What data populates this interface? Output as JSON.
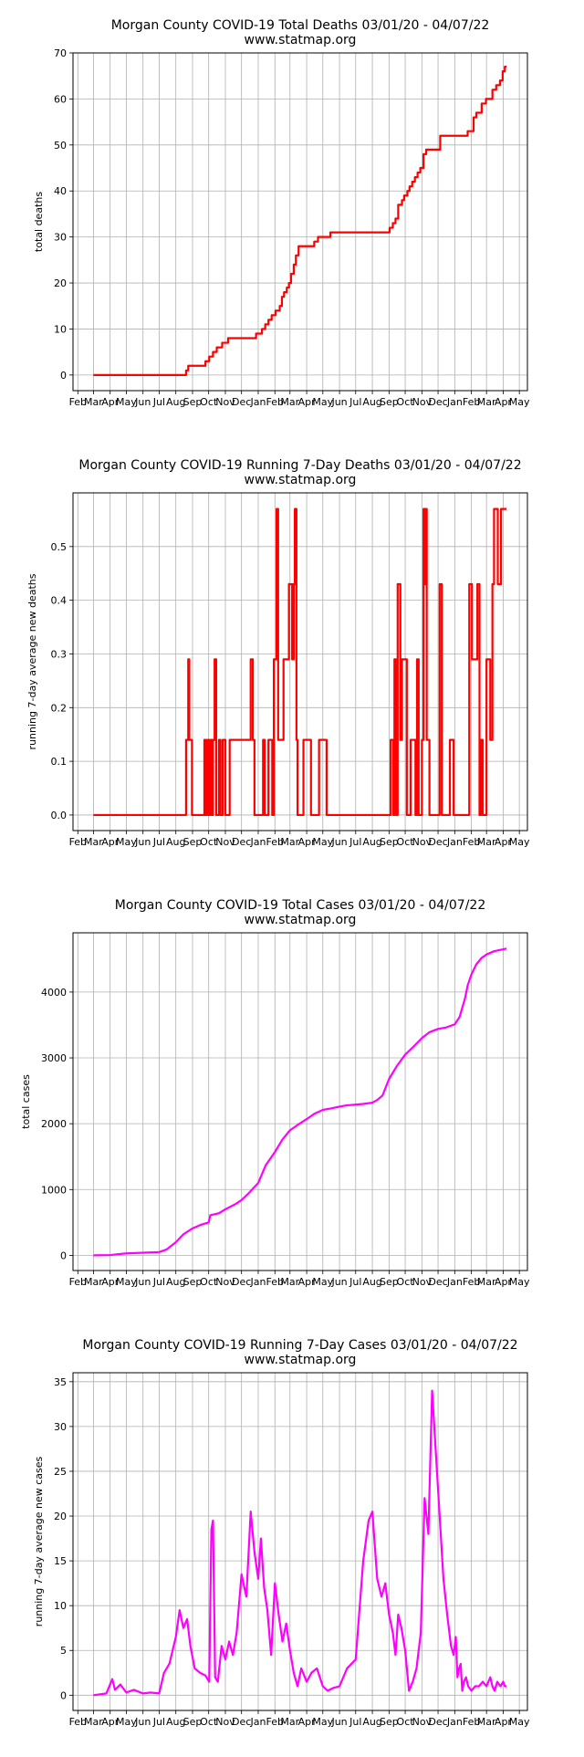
{
  "chart_data": [
    {
      "type": "line",
      "title": "Morgan County COVID-19 Total Deaths 03/01/20 - 04/07/22",
      "subtitle": "www.statmap.org",
      "xlabel": "",
      "ylabel": "total deaths",
      "color": "#ff0000",
      "grid": true,
      "legend": "none",
      "step": true,
      "ylim": [
        -3.4,
        70
      ],
      "yticks": [
        0,
        10,
        20,
        30,
        40,
        50,
        60,
        70
      ],
      "ytick_labels": [
        "0",
        "10",
        "20",
        "30",
        "40",
        "50",
        "60",
        "70"
      ],
      "xlim": [
        "2020-01-23",
        "2022-05-16"
      ],
      "xticks": [
        "2020-02-01",
        "2020-03-01",
        "2020-04-01",
        "2020-05-01",
        "2020-06-01",
        "2020-07-01",
        "2020-08-01",
        "2020-09-01",
        "2020-10-01",
        "2020-11-01",
        "2020-12-01",
        "2021-01-01",
        "2021-02-01",
        "2021-03-01",
        "2021-04-01",
        "2021-05-01",
        "2021-06-01",
        "2021-07-01",
        "2021-08-01",
        "2021-09-01",
        "2021-10-01",
        "2021-11-01",
        "2021-12-01",
        "2022-01-01",
        "2022-02-01",
        "2022-03-01",
        "2022-04-01",
        "2022-05-01"
      ],
      "xtick_labels": [
        "Feb",
        "Mar",
        "Apr",
        "May",
        "Jun",
        "Jul",
        "Aug",
        "Sep",
        "Oct",
        "Nov",
        "Dec",
        "Jan",
        "Feb",
        "Mar",
        "Apr",
        "May",
        "Jun",
        "Jul",
        "Aug",
        "Sep",
        "Oct",
        "Nov",
        "Dec",
        "Jan",
        "Feb",
        "Mar",
        "Apr",
        "May"
      ],
      "x": [
        "2020-03-01",
        "2020-08-20",
        "2020-08-24",
        "2020-08-28",
        "2020-09-25",
        "2020-10-02",
        "2020-10-09",
        "2020-10-16",
        "2020-10-26",
        "2020-11-06",
        "2020-12-01",
        "2020-12-28",
        "2021-01-08",
        "2021-01-14",
        "2021-01-20",
        "2021-01-26",
        "2021-02-02",
        "2021-02-10",
        "2021-02-14",
        "2021-02-18",
        "2021-02-23",
        "2021-02-27",
        "2021-03-03",
        "2021-03-08",
        "2021-03-12",
        "2021-03-17",
        "2021-03-25",
        "2021-04-15",
        "2021-04-22",
        "2021-05-15",
        "2021-08-30",
        "2021-09-02",
        "2021-09-08",
        "2021-09-13",
        "2021-09-18",
        "2021-09-25",
        "2021-09-29",
        "2021-10-05",
        "2021-10-09",
        "2021-10-14",
        "2021-10-19",
        "2021-10-24",
        "2021-10-29",
        "2021-11-04",
        "2021-11-09",
        "2021-11-14",
        "2021-12-05",
        "2022-01-12",
        "2022-01-25",
        "2022-01-29",
        "2022-02-05",
        "2022-02-10",
        "2022-02-20",
        "2022-02-28",
        "2022-03-06",
        "2022-03-12",
        "2022-03-19",
        "2022-03-26",
        "2022-03-31",
        "2022-04-04",
        "2022-04-07"
      ],
      "y": [
        0,
        1,
        2,
        2,
        3,
        4,
        5,
        6,
        7,
        8,
        8,
        9,
        10,
        11,
        12,
        13,
        14,
        15,
        17,
        18,
        19,
        20,
        22,
        24,
        26,
        28,
        28,
        29,
        30,
        31,
        31,
        32,
        33,
        34,
        37,
        38,
        39,
        40,
        41,
        42,
        43,
        44,
        45,
        48,
        49,
        49,
        52,
        52,
        53,
        53,
        56,
        57,
        59,
        60,
        60,
        62,
        63,
        64,
        66,
        67,
        67
      ]
    },
    {
      "type": "line",
      "title": "Morgan County COVID-19 Running 7-Day Deaths 03/01/20 - 04/07/22",
      "subtitle": "www.statmap.org",
      "xlabel": "",
      "ylabel": "running 7-day average new deaths",
      "color": "#ff0000",
      "grid": true,
      "legend": "none",
      "step": true,
      "ylim": [
        -0.029,
        0.6
      ],
      "yticks": [
        0,
        0.1,
        0.2,
        0.3,
        0.4,
        0.5
      ],
      "ytick_labels": [
        "0.0",
        "0.1",
        "0.2",
        "0.3",
        "0.4",
        "0.5"
      ],
      "xlim": [
        "2020-01-23",
        "2022-05-16"
      ],
      "xticks": [
        "2020-02-01",
        "2020-03-01",
        "2020-04-01",
        "2020-05-01",
        "2020-06-01",
        "2020-07-01",
        "2020-08-01",
        "2020-09-01",
        "2020-10-01",
        "2020-11-01",
        "2020-12-01",
        "2021-01-01",
        "2021-02-01",
        "2021-03-01",
        "2021-04-01",
        "2021-05-01",
        "2021-06-01",
        "2021-07-01",
        "2021-08-01",
        "2021-09-01",
        "2021-10-01",
        "2021-11-01",
        "2021-12-01",
        "2022-01-01",
        "2022-02-01",
        "2022-03-01",
        "2022-04-01",
        "2022-05-01"
      ],
      "xtick_labels": [
        "Feb",
        "Mar",
        "Apr",
        "May",
        "Jun",
        "Jul",
        "Aug",
        "Sep",
        "Oct",
        "Nov",
        "Dec",
        "Jan",
        "Feb",
        "Mar",
        "Apr",
        "May",
        "Jun",
        "Jul",
        "Aug",
        "Sep",
        "Oct",
        "Nov",
        "Dec",
        "Jan",
        "Feb",
        "Mar",
        "Apr",
        "May"
      ],
      "x": [
        "2020-03-01",
        "2020-08-20",
        "2020-08-24",
        "2020-08-26",
        "2020-08-31",
        "2020-09-08",
        "2020-09-23",
        "2020-09-25",
        "2020-09-28",
        "2020-10-01",
        "2020-10-04",
        "2020-10-07",
        "2020-10-09",
        "2020-10-12",
        "2020-10-15",
        "2020-10-20",
        "2020-10-23",
        "2020-10-27",
        "2020-11-01",
        "2020-11-04",
        "2020-11-09",
        "2020-12-18",
        "2020-12-22",
        "2020-12-25",
        "2020-12-29",
        "2021-01-02",
        "2021-01-10",
        "2021-01-13",
        "2021-01-20",
        "2021-01-27",
        "2021-01-30",
        "2021-02-04",
        "2021-02-07",
        "2021-02-09",
        "2021-02-11",
        "2021-02-17",
        "2021-02-27",
        "2021-03-05",
        "2021-03-08",
        "2021-03-10",
        "2021-03-13",
        "2021-03-15",
        "2021-03-19",
        "2021-03-26",
        "2021-04-09",
        "2021-04-14",
        "2021-04-24",
        "2021-05-08",
        "2021-05-13",
        "2021-05-16",
        "2021-06-16",
        "2021-09-04",
        "2021-09-09",
        "2021-09-11",
        "2021-09-14",
        "2021-09-17",
        "2021-09-22",
        "2021-09-25",
        "2021-10-04",
        "2021-10-11",
        "2021-10-20",
        "2021-10-23",
        "2021-10-26",
        "2021-11-01",
        "2021-11-04",
        "2021-11-06",
        "2021-11-08",
        "2021-11-10",
        "2021-11-15",
        "2021-11-19",
        "2021-12-04",
        "2021-12-08",
        "2021-12-14",
        "2021-12-23",
        "2021-12-30",
        "2022-01-28",
        "2022-02-02",
        "2022-02-12",
        "2022-02-16",
        "2022-02-19",
        "2022-02-22",
        "2022-03-01",
        "2022-03-08",
        "2022-03-12",
        "2022-03-15",
        "2022-03-18",
        "2022-03-22",
        "2022-03-28",
        "2022-04-07"
      ],
      "y": [
        0,
        0.14,
        0.29,
        0.14,
        0,
        0,
        0.14,
        0,
        0.14,
        0,
        0.14,
        0,
        0.14,
        0.29,
        0,
        0.14,
        0,
        0.14,
        0,
        0,
        0.14,
        0.29,
        0.14,
        0,
        0,
        0,
        0.14,
        0,
        0.14,
        0,
        0.29,
        0.57,
        0.14,
        0.14,
        0.14,
        0.29,
        0.43,
        0.29,
        0.43,
        0.57,
        0.14,
        0,
        0,
        0.14,
        0,
        0,
        0.14,
        0,
        0,
        0,
        0,
        0.14,
        0,
        0.29,
        0,
        0.43,
        0.14,
        0.29,
        0,
        0.14,
        0,
        0.29,
        0,
        0.14,
        0.57,
        0.43,
        0.57,
        0.14,
        0,
        0,
        0.43,
        0,
        0,
        0.14,
        0,
        0.43,
        0.29,
        0.43,
        0,
        0.14,
        0,
        0.29,
        0.14,
        0.43,
        0.57,
        0.57,
        0.43,
        0.57,
        0.57
      ],
      "note_unused": ""
    },
    {
      "type": "line",
      "title": "Morgan County COVID-19 Total Cases 03/01/20 - 04/07/22",
      "subtitle": "www.statmap.org",
      "xlabel": "",
      "ylabel": "total cases",
      "color": "#ff00ff",
      "grid": true,
      "legend": "none",
      "step": false,
      "ylim": [
        -230,
        4900
      ],
      "yticks": [
        0,
        1000,
        2000,
        3000,
        4000
      ],
      "ytick_labels": [
        "0",
        "1000",
        "2000",
        "3000",
        "4000"
      ],
      "xlim": [
        "2020-01-23",
        "2022-05-16"
      ],
      "xticks": [
        "2020-02-01",
        "2020-03-01",
        "2020-04-01",
        "2020-05-01",
        "2020-06-01",
        "2020-07-01",
        "2020-08-01",
        "2020-09-01",
        "2020-10-01",
        "2020-11-01",
        "2020-12-01",
        "2021-01-01",
        "2021-02-01",
        "2021-03-01",
        "2021-04-01",
        "2021-05-01",
        "2021-06-01",
        "2021-07-01",
        "2021-08-01",
        "2021-09-01",
        "2021-10-01",
        "2021-11-01",
        "2021-12-01",
        "2022-01-01",
        "2022-02-01",
        "2022-03-01",
        "2022-04-01",
        "2022-05-01"
      ],
      "xtick_labels": [
        "Feb",
        "Mar",
        "Apr",
        "May",
        "Jun",
        "Jul",
        "Aug",
        "Sep",
        "Oct",
        "Nov",
        "Dec",
        "Jan",
        "Feb",
        "Mar",
        "Apr",
        "May",
        "Jun",
        "Jul",
        "Aug",
        "Sep",
        "Oct",
        "Nov",
        "Dec",
        "Jan",
        "Feb",
        "Mar",
        "Apr",
        "May"
      ],
      "x": [
        "2020-03-01",
        "2020-04-01",
        "2020-05-01",
        "2020-06-01",
        "2020-07-01",
        "2020-07-15",
        "2020-08-01",
        "2020-08-15",
        "2020-09-01",
        "2020-09-15",
        "2020-10-01",
        "2020-10-04",
        "2020-10-20",
        "2020-11-01",
        "2020-11-20",
        "2020-12-01",
        "2020-12-15",
        "2021-01-01",
        "2021-01-15",
        "2021-02-01",
        "2021-02-15",
        "2021-03-01",
        "2021-03-15",
        "2021-04-01",
        "2021-04-15",
        "2021-05-01",
        "2021-05-15",
        "2021-06-01",
        "2021-06-15",
        "2021-07-01",
        "2021-07-15",
        "2021-08-01",
        "2021-08-10",
        "2021-08-20",
        "2021-09-01",
        "2021-09-15",
        "2021-10-01",
        "2021-10-15",
        "2021-11-01",
        "2021-11-15",
        "2021-12-01",
        "2021-12-15",
        "2022-01-01",
        "2022-01-10",
        "2022-01-15",
        "2022-01-20",
        "2022-01-25",
        "2022-02-01",
        "2022-02-10",
        "2022-02-20",
        "2022-03-01",
        "2022-03-15",
        "2022-04-01",
        "2022-04-07"
      ],
      "y": [
        0,
        5,
        30,
        40,
        50,
        90,
        200,
        320,
        410,
        460,
        500,
        610,
        640,
        700,
        780,
        840,
        950,
        1100,
        1370,
        1570,
        1760,
        1900,
        1980,
        2070,
        2150,
        2210,
        2230,
        2260,
        2280,
        2290,
        2300,
        2320,
        2360,
        2430,
        2680,
        2870,
        3050,
        3160,
        3300,
        3390,
        3440,
        3460,
        3510,
        3620,
        3760,
        3900,
        4100,
        4270,
        4420,
        4520,
        4570,
        4620,
        4650,
        4660
      ]
    },
    {
      "type": "line",
      "title": "Morgan County COVID-19 Running 7-Day Cases 03/01/20 - 04/07/22",
      "subtitle": "www.statmap.org",
      "xlabel": "",
      "ylabel": "running 7-day average new cases",
      "color": "#ff00ff",
      "grid": true,
      "legend": "none",
      "step": false,
      "ylim": [
        -1.7,
        36
      ],
      "yticks": [
        0,
        5,
        10,
        15,
        20,
        25,
        30,
        35
      ],
      "ytick_labels": [
        "0",
        "5",
        "10",
        "15",
        "20",
        "25",
        "30",
        "35"
      ],
      "xlim": [
        "2020-01-23",
        "2022-05-16"
      ],
      "xticks": [
        "2020-02-01",
        "2020-03-01",
        "2020-04-01",
        "2020-05-01",
        "2020-06-01",
        "2020-07-01",
        "2020-08-01",
        "2020-09-01",
        "2020-10-01",
        "2020-11-01",
        "2020-12-01",
        "2021-01-01",
        "2021-02-01",
        "2021-03-01",
        "2021-04-01",
        "2021-05-01",
        "2021-06-01",
        "2021-07-01",
        "2021-08-01",
        "2021-09-01",
        "2021-10-01",
        "2021-11-01",
        "2021-12-01",
        "2022-01-01",
        "2022-02-01",
        "2022-03-01",
        "2022-04-01",
        "2022-05-01"
      ],
      "xtick_labels": [
        "Feb",
        "Mar",
        "Apr",
        "May",
        "Jun",
        "Jul",
        "Aug",
        "Sep",
        "Oct",
        "Nov",
        "Dec",
        "Jan",
        "Feb",
        "Mar",
        "Apr",
        "May",
        "Jun",
        "Jul",
        "Aug",
        "Sep",
        "Oct",
        "Nov",
        "Dec",
        "Jan",
        "Feb",
        "Mar",
        "Apr",
        "May"
      ],
      "x": [
        "2020-03-01",
        "2020-03-25",
        "2020-04-05",
        "2020-04-10",
        "2020-04-20",
        "2020-05-01",
        "2020-05-15",
        "2020-06-01",
        "2020-06-15",
        "2020-07-01",
        "2020-07-10",
        "2020-07-20",
        "2020-08-01",
        "2020-08-08",
        "2020-08-15",
        "2020-08-22",
        "2020-08-28",
        "2020-09-05",
        "2020-09-15",
        "2020-09-25",
        "2020-10-02",
        "2020-10-06",
        "2020-10-09",
        "2020-10-13",
        "2020-10-18",
        "2020-10-25",
        "2020-11-01",
        "2020-11-08",
        "2020-11-15",
        "2020-11-22",
        "2020-12-01",
        "2020-12-10",
        "2020-12-18",
        "2020-12-25",
        "2021-01-01",
        "2021-01-06",
        "2021-01-12",
        "2021-01-18",
        "2021-01-25",
        "2021-02-01",
        "2021-02-08",
        "2021-02-15",
        "2021-02-22",
        "2021-03-01",
        "2021-03-08",
        "2021-03-15",
        "2021-03-22",
        "2021-04-01",
        "2021-04-10",
        "2021-04-20",
        "2021-05-01",
        "2021-05-10",
        "2021-05-20",
        "2021-06-01",
        "2021-06-15",
        "2021-07-01",
        "2021-07-15",
        "2021-07-25",
        "2021-08-01",
        "2021-08-10",
        "2021-08-18",
        "2021-08-25",
        "2021-09-01",
        "2021-09-08",
        "2021-09-13",
        "2021-09-18",
        "2021-09-24",
        "2021-10-01",
        "2021-10-08",
        "2021-10-15",
        "2021-10-22",
        "2021-10-30",
        "2021-11-06",
        "2021-11-13",
        "2021-11-20",
        "2021-11-27",
        "2021-12-04",
        "2021-12-11",
        "2021-12-18",
        "2021-12-25",
        "2021-12-30",
        "2022-01-03",
        "2022-01-06",
        "2022-01-09",
        "2022-01-12",
        "2022-01-15",
        "2022-01-18",
        "2022-01-22",
        "2022-01-26",
        "2022-02-01",
        "2022-02-08",
        "2022-02-15",
        "2022-02-22",
        "2022-03-01",
        "2022-03-08",
        "2022-03-12",
        "2022-03-16",
        "2022-03-21",
        "2022-03-27",
        "2022-04-01",
        "2022-04-04",
        "2022-04-07"
      ],
      "y": [
        0,
        0.2,
        1.8,
        0.6,
        1.2,
        0.3,
        0.6,
        0.2,
        0.3,
        0.2,
        2.5,
        3.5,
        6.5,
        9.5,
        7.5,
        8.5,
        5.5,
        3.0,
        2.5,
        2.2,
        1.5,
        18.5,
        19.5,
        2.0,
        1.5,
        5.5,
        4.0,
        6.0,
        4.5,
        7.0,
        13.5,
        11.0,
        20.5,
        16.0,
        13.0,
        17.5,
        12.0,
        9.5,
        4.5,
        12.5,
        9.0,
        6.0,
        8.0,
        5.0,
        2.5,
        1.0,
        3.0,
        1.5,
        2.5,
        3.0,
        1.0,
        0.5,
        0.8,
        1.0,
        3.0,
        4.0,
        15.0,
        19.5,
        20.5,
        13.0,
        11.0,
        12.5,
        9.0,
        7.0,
        4.5,
        9.0,
        7.5,
        5.0,
        0.5,
        1.5,
        3.0,
        7.0,
        22.0,
        18.0,
        34.0,
        27.0,
        20.0,
        13.0,
        9.0,
        5.5,
        4.5,
        6.5,
        2.0,
        3.0,
        3.5,
        0.5,
        1.5,
        2.0,
        1.0,
        0.5,
        1.0,
        1.0,
        1.5,
        1.0,
        2.0,
        1.0,
        0.5,
        1.5,
        1.0,
        1.5,
        1.0,
        1.0
      ]
    }
  ]
}
